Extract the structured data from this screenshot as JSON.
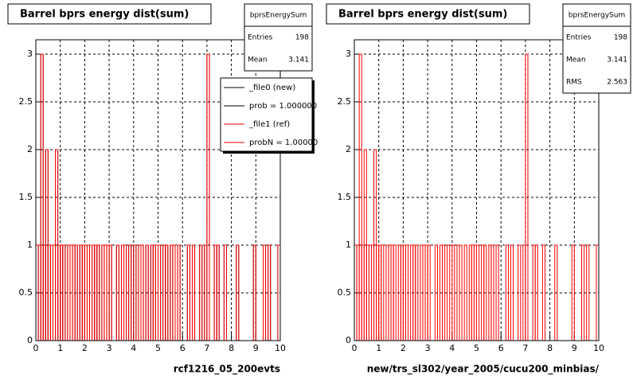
{
  "chart_data": [
    {
      "type": "histogram",
      "title": "Barrel bprs energy dist(sum)",
      "xlabel": "rcf1216_05_200evts",
      "bins": [
        0,
        0.1,
        0.2,
        0.3,
        0.4,
        0.5,
        0.6,
        0.7,
        0.8,
        0.9,
        1,
        1.1,
        1.2,
        1.3,
        1.4,
        1.5,
        1.6,
        1.7,
        1.8,
        1.9,
        2,
        2.1,
        2.2,
        2.3,
        2.4,
        2.5,
        2.6,
        2.7,
        2.8,
        2.9,
        3,
        3.1,
        3.2,
        3.3,
        3.4,
        3.5,
        3.6,
        3.7,
        3.8,
        3.9,
        4,
        4.1,
        4.2,
        4.3,
        4.4,
        4.5,
        4.6,
        4.7,
        4.8,
        4.9,
        5,
        5.1,
        5.2,
        5.3,
        5.4,
        5.5,
        5.6,
        5.7,
        5.8,
        5.9,
        6,
        6.1,
        6.2,
        6.3,
        6.4,
        6.5,
        6.6,
        6.7,
        6.8,
        6.9,
        7,
        7.1,
        7.2,
        7.3,
        7.4,
        7.5,
        7.6,
        7.7,
        7.8,
        7.9,
        8,
        8.1,
        8.2,
        8.3,
        8.4,
        8.5,
        8.6,
        8.7,
        8.8,
        8.9,
        9,
        9.1,
        9.2,
        9.3,
        9.4,
        9.5,
        9.6,
        9.7,
        9.8,
        9.9,
        10
      ],
      "series": [
        {
          "name": "_file0 (new)",
          "color": "#000000",
          "values": [
            1,
            1,
            3,
            1,
            2,
            1,
            1,
            1,
            2,
            1,
            1,
            1,
            0,
            1,
            1,
            1,
            1,
            0,
            1,
            1,
            1,
            1,
            0,
            1,
            1,
            1,
            0,
            1,
            1,
            1,
            1,
            0,
            0,
            1,
            0,
            1,
            1,
            0,
            1,
            0,
            1,
            0,
            1,
            1,
            0,
            1,
            0,
            1,
            1,
            1,
            1,
            0,
            1,
            1,
            0,
            1,
            1,
            0,
            1,
            0,
            0,
            0,
            1,
            0,
            1,
            0,
            0,
            1,
            0,
            1,
            3,
            0,
            0,
            1,
            1,
            0,
            0,
            1,
            0,
            0,
            0,
            0,
            1,
            0,
            0,
            0,
            0,
            0,
            0,
            1,
            0,
            0,
            0,
            1,
            0,
            1,
            0,
            0,
            0,
            1
          ]
        },
        {
          "name": "_file1 (ref)",
          "color": "#ff0000",
          "values": [
            1,
            1,
            3,
            1,
            2,
            1,
            1,
            1,
            2,
            1,
            1,
            1,
            0,
            1,
            1,
            1,
            1,
            0,
            1,
            1,
            1,
            1,
            0,
            1,
            1,
            1,
            0,
            1,
            1,
            1,
            1,
            0,
            0,
            1,
            0,
            1,
            1,
            0,
            1,
            0,
            1,
            0,
            1,
            1,
            0,
            1,
            0,
            1,
            1,
            1,
            1,
            0,
            1,
            1,
            0,
            1,
            1,
            0,
            1,
            0,
            0,
            0,
            1,
            0,
            1,
            0,
            0,
            1,
            0,
            1,
            3,
            0,
            0,
            1,
            1,
            0,
            0,
            1,
            0,
            0,
            0,
            0,
            1,
            0,
            0,
            0,
            0,
            0,
            0,
            1,
            0,
            0,
            0,
            1,
            0,
            1,
            0,
            0,
            0,
            1
          ]
        }
      ],
      "legend": [
        {
          "label": "_file0 (new)",
          "color": "#000000"
        },
        {
          "label": "prob = 1.000000",
          "color": "#000000"
        },
        {
          "label": "_file1 (ref)",
          "color": "#ff0000"
        },
        {
          "label": "probN = 1.00000",
          "color": "#ff0000"
        }
      ],
      "stats": {
        "title": "bprsEnergySum",
        "rows": [
          [
            "Entries",
            198
          ],
          [
            "Mean",
            3.141
          ]
        ]
      },
      "xlim": [
        0,
        10
      ],
      "ylim": [
        0,
        3.15
      ],
      "xticks": [
        0,
        1,
        2,
        3,
        4,
        5,
        6,
        7,
        8,
        9,
        10
      ],
      "yticks": [
        0,
        0.5,
        1,
        1.5,
        2,
        2.5,
        3
      ],
      "grid": true
    },
    {
      "type": "histogram",
      "title": "Barrel bprs energy dist(sum)",
      "xlabel": "new/trs_sl302/year_2005/cucu200_minbias/",
      "bins": [
        0,
        0.1,
        0.2,
        0.3,
        0.4,
        0.5,
        0.6,
        0.7,
        0.8,
        0.9,
        1,
        1.1,
        1.2,
        1.3,
        1.4,
        1.5,
        1.6,
        1.7,
        1.8,
        1.9,
        2,
        2.1,
        2.2,
        2.3,
        2.4,
        2.5,
        2.6,
        2.7,
        2.8,
        2.9,
        3,
        3.1,
        3.2,
        3.3,
        3.4,
        3.5,
        3.6,
        3.7,
        3.8,
        3.9,
        4,
        4.1,
        4.2,
        4.3,
        4.4,
        4.5,
        4.6,
        4.7,
        4.8,
        4.9,
        5,
        5.1,
        5.2,
        5.3,
        5.4,
        5.5,
        5.6,
        5.7,
        5.8,
        5.9,
        6,
        6.1,
        6.2,
        6.3,
        6.4,
        6.5,
        6.6,
        6.7,
        6.8,
        6.9,
        7,
        7.1,
        7.2,
        7.3,
        7.4,
        7.5,
        7.6,
        7.7,
        7.8,
        7.9,
        8,
        8.1,
        8.2,
        8.3,
        8.4,
        8.5,
        8.6,
        8.7,
        8.8,
        8.9,
        9,
        9.1,
        9.2,
        9.3,
        9.4,
        9.5,
        9.6,
        9.7,
        9.8,
        9.9,
        10
      ],
      "series": [
        {
          "color": "#ff0000",
          "values": [
            1,
            1,
            3,
            1,
            2,
            1,
            1,
            1,
            2,
            1,
            1,
            1,
            0,
            1,
            1,
            1,
            1,
            0,
            1,
            1,
            1,
            1,
            0,
            1,
            1,
            1,
            0,
            1,
            1,
            1,
            1,
            0,
            0,
            1,
            0,
            1,
            1,
            0,
            1,
            0,
            1,
            0,
            1,
            1,
            0,
            1,
            0,
            1,
            1,
            1,
            1,
            0,
            1,
            1,
            0,
            1,
            1,
            0,
            1,
            0,
            0,
            0,
            1,
            0,
            1,
            0,
            0,
            1,
            0,
            1,
            3,
            0,
            0,
            1,
            1,
            0,
            0,
            1,
            0,
            0,
            0,
            0,
            1,
            0,
            0,
            0,
            0,
            0,
            0,
            1,
            0,
            0,
            0,
            1,
            0,
            1,
            0,
            0,
            0,
            1
          ]
        }
      ],
      "stats": {
        "title": "bprsEnergySum",
        "rows": [
          [
            "Entries",
            198
          ],
          [
            "Mean",
            3.141
          ],
          [
            "RMS",
            2.563
          ]
        ]
      },
      "xlim": [
        0,
        10
      ],
      "ylim": [
        0,
        3.15
      ],
      "xticks": [
        0,
        1,
        2,
        3,
        4,
        5,
        6,
        7,
        8,
        9,
        10
      ],
      "yticks": [
        0,
        0.5,
        1,
        1.5,
        2,
        2.5,
        3
      ],
      "grid": true
    }
  ]
}
